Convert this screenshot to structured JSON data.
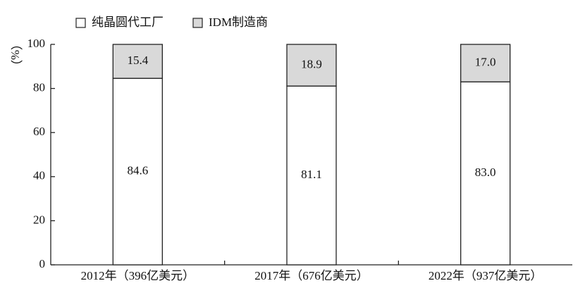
{
  "chart_data": {
    "type": "stacked_bar",
    "ylabel": "（%）",
    "categories": [
      "2012年（396亿美元）",
      "2017年（676亿美元）",
      "2022年（937亿美元）"
    ],
    "series": [
      {
        "name": "纯晶圆代工厂",
        "color": "#ffffff",
        "values": [
          84.6,
          81.1,
          83.0
        ],
        "value_labels": [
          "84.6",
          "81.1",
          "83.0"
        ]
      },
      {
        "name": "IDM制造商",
        "color": "#d9d9d9",
        "values": [
          15.4,
          18.9,
          17.0
        ],
        "value_labels": [
          "15.4",
          "18.9",
          "17.0"
        ]
      }
    ],
    "ylim": [
      0,
      100
    ],
    "yticks": [
      0,
      20,
      40,
      60,
      80,
      100
    ],
    "grid": false,
    "legend": "top"
  }
}
